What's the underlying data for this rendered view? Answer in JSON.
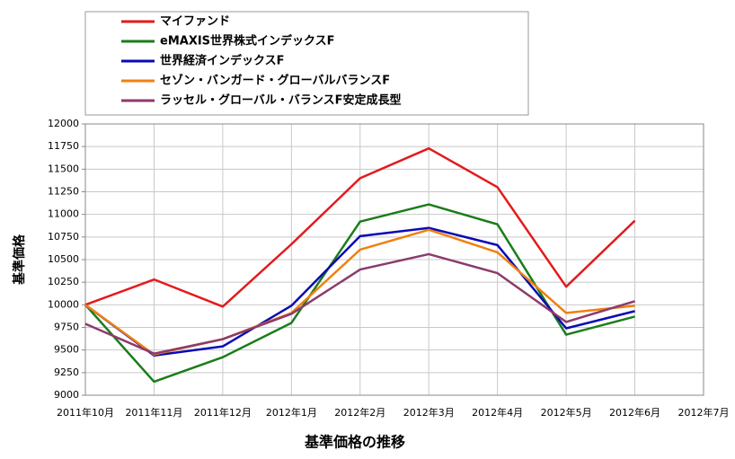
{
  "chart_data": {
    "type": "line",
    "title": "基準価格の推移",
    "y_label": "基準価格",
    "categories": [
      "2011年10月",
      "2011年11月",
      "2011年12月",
      "2012年1月",
      "2012年2月",
      "2012年3月",
      "2012年4月",
      "2012年5月",
      "2012年6月",
      "2012年7月"
    ],
    "series": [
      {
        "name": "マイファンド",
        "color": "#e31a1c",
        "values": [
          10000,
          10280,
          9980,
          10670,
          11400,
          11730,
          11300,
          10200,
          10930,
          null
        ]
      },
      {
        "name": "eMAXIS世界株式インデックスF",
        "color": "#1a7d1a",
        "values": [
          10000,
          9150,
          9420,
          9800,
          10920,
          11110,
          10890,
          9670,
          9870,
          null
        ]
      },
      {
        "name": "世界経済インデックスF",
        "color": "#0a0ab4",
        "values": [
          10000,
          9440,
          9540,
          9990,
          10760,
          10850,
          10660,
          9740,
          9930,
          null
        ]
      },
      {
        "name": "セゾン・バンガード・グローバルバランスF",
        "color": "#f08010",
        "values": [
          10000,
          9450,
          9620,
          9910,
          10610,
          10830,
          10580,
          9910,
          9990,
          null
        ]
      },
      {
        "name": "ラッセル・グローバル・バランスF安定成長型",
        "color": "#8b3a6b",
        "values": [
          9790,
          9460,
          9620,
          9900,
          10390,
          10560,
          10350,
          9810,
          10040,
          null
        ]
      }
    ],
    "ylim": [
      9000,
      12000
    ],
    "yticks": [
      9000,
      9250,
      9500,
      9750,
      10000,
      10250,
      10500,
      10750,
      11000,
      11250,
      11500,
      11750,
      12000
    ],
    "grid": true,
    "legend": "top"
  }
}
